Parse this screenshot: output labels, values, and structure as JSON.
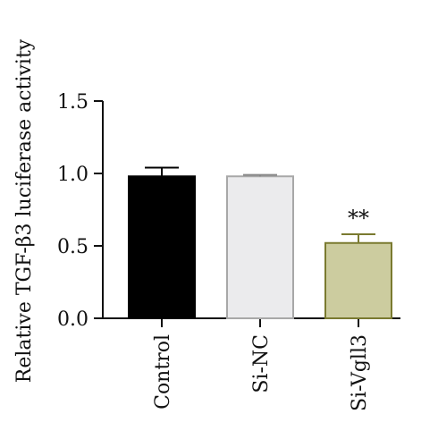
{
  "chart_data": {
    "type": "bar",
    "title": "",
    "xlabel": "",
    "ylabel": "Relative TGF-β3 luciferase activity",
    "categories": [
      "Control",
      "Si-NC",
      "Si-Vgll3"
    ],
    "values": [
      0.98,
      0.98,
      0.52
    ],
    "errors": [
      0.06,
      0.01,
      0.06
    ],
    "annotations": [
      "",
      "",
      "**"
    ],
    "ylim": [
      0,
      1.5
    ],
    "yticks": [
      "0.0",
      "0.5",
      "1.0",
      "1.5"
    ],
    "grid": false,
    "legend": "none",
    "colors": {
      "fill": [
        "#000000",
        "#ebebed",
        "#cccc9f"
      ],
      "stroke": [
        "#000000",
        "#a8a8a8",
        "#7a7a30"
      ]
    }
  }
}
